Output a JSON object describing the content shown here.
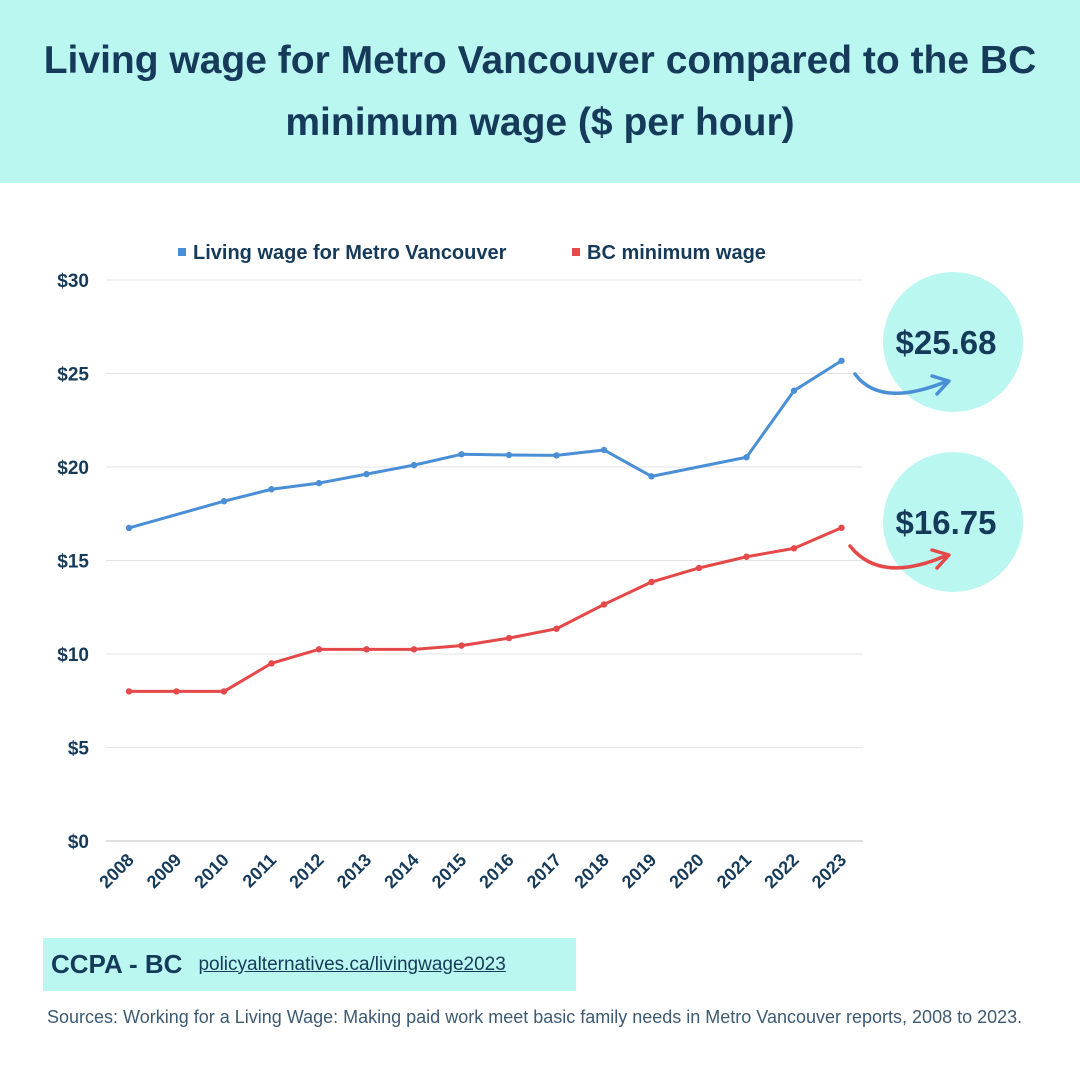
{
  "title": "Living wage for Metro Vancouver compared to the BC minimum wage ($ per hour)",
  "footer": {
    "org": "CCPA - BC",
    "link": "policyalternatives.ca/livingwage2023",
    "sources": "Sources: Working for a Living Wage: Making paid work meet basic family needs in Metro Vancouver reports, 2008 to 2023."
  },
  "colors": {
    "living": "#4a8fd6",
    "minimum": "#e54848",
    "bubble": "#baf7f0",
    "text": "#163a5a"
  },
  "chart_data": {
    "type": "line",
    "x": [
      "2008",
      "2009",
      "2010",
      "2011",
      "2012",
      "2013",
      "2014",
      "2015",
      "2016",
      "2017",
      "2018",
      "2019",
      "2020",
      "2021",
      "2022",
      "2023"
    ],
    "ylim": [
      0,
      30
    ],
    "yticks": [
      "$0",
      "$5",
      "$10",
      "$15",
      "$20",
      "$25",
      "$30"
    ],
    "legend_position": "top",
    "grid": true,
    "series": [
      {
        "name": "Living wage for Metro Vancouver",
        "values": [
          16.74,
          null,
          18.17,
          18.81,
          19.14,
          19.62,
          20.1,
          20.68,
          20.64,
          20.62,
          20.91,
          19.5,
          null,
          20.52,
          24.08,
          25.68
        ],
        "color": "#4a8fd6"
      },
      {
        "name": "BC minimum wage",
        "values": [
          8.0,
          8.0,
          8.0,
          9.5,
          10.25,
          10.25,
          10.25,
          10.45,
          10.85,
          11.35,
          12.65,
          13.85,
          14.6,
          15.2,
          15.65,
          16.75
        ],
        "color": "#e54848"
      }
    ],
    "annotations": [
      "$25.68",
      "$16.75"
    ]
  }
}
